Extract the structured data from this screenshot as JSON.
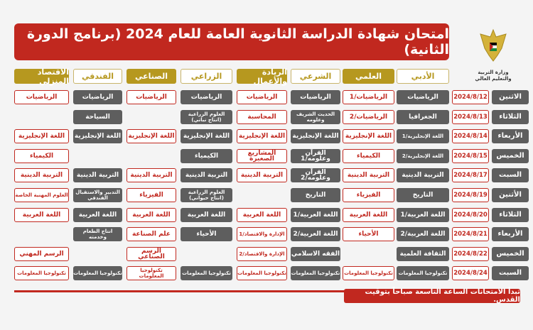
{
  "title": "امتحان شهادة الدراسة الثانوية العامة للعام  2024  (برنامج الدورة الثانية)",
  "ministry": "وزارة التربية والتعليم العالي",
  "colors": {
    "red": "#c1281f",
    "gold": "#b6981f",
    "gray": "#5e5e5e"
  },
  "streams": [
    {
      "label": "الأدبي",
      "style": "w"
    },
    {
      "label": "العلمي",
      "style": "g"
    },
    {
      "label": "الشرعي",
      "style": "w"
    },
    {
      "label": "الريادة والأعمال",
      "style": "g"
    },
    {
      "label": "الزراعي",
      "style": "w"
    },
    {
      "label": "الصناعي",
      "style": "g"
    },
    {
      "label": "الفندقي",
      "style": "w"
    },
    {
      "label": "الاقتصاد المنزلي",
      "style": "g"
    }
  ],
  "rows": [
    {
      "day": "الاثنين",
      "date": "2024/8/12",
      "cells": [
        [
          "الرياضيات",
          "d"
        ],
        [
          "الرياضيات/1",
          "r"
        ],
        [
          "الرياضيات",
          "d"
        ],
        [
          "الرياضيات",
          "r"
        ],
        [
          "الرياضيات",
          "d"
        ],
        [
          "الرياضيات",
          "r"
        ],
        [
          "الرياضيات",
          "d"
        ],
        [
          "الرياضيات",
          "r"
        ]
      ]
    },
    {
      "day": "الثلاثاء",
      "date": "2024/8/13",
      "cells": [
        [
          "الجغرافيا",
          "d"
        ],
        [
          "الرياضيات/2",
          "r"
        ],
        [
          "الحديث الشريف\nوعلومه",
          "d"
        ],
        [
          "المحاسبة",
          "r"
        ],
        [
          "العلوم الزراعية\n(انتاج نباتي)",
          "d"
        ],
        null,
        [
          "السياحة",
          "d"
        ],
        null
      ]
    },
    {
      "day": "الأربعاء",
      "date": "2024/8/14",
      "cells": [
        [
          "اللغة الإنجليزية/1",
          "d"
        ],
        [
          "اللغة الإنجليزية",
          "r"
        ],
        [
          "اللغة الإنجليزية",
          "d"
        ],
        [
          "اللغة الإنجليزية",
          "r"
        ],
        [
          "اللغة الإنجليزية",
          "d"
        ],
        [
          "اللغة الإنجليزية",
          "r"
        ],
        [
          "اللغة الإنجليزية",
          "d"
        ],
        [
          "اللغة الإنجليزية",
          "r"
        ]
      ]
    },
    {
      "day": "الخميس",
      "date": "2024/8/15",
      "cells": [
        [
          "اللغة الإنجليزية/2",
          "d"
        ],
        [
          "الكيمياء",
          "r"
        ],
        [
          "القرآن وعلومه/1",
          "d"
        ],
        [
          "المشاريع الصغيرة",
          "r"
        ],
        [
          "الكيمياء",
          "d"
        ],
        null,
        null,
        [
          "الكيمياء",
          "r"
        ]
      ]
    },
    {
      "day": "السبت",
      "date": "2024/8/17",
      "cells": [
        [
          "التربية الدينية",
          "d"
        ],
        [
          "التربية الدينية",
          "r"
        ],
        [
          "القرآن وعلومه/2",
          "d"
        ],
        [
          "التربية الدينية",
          "r"
        ],
        [
          "التربية الدينية",
          "d"
        ],
        [
          "التربية الدينية",
          "r"
        ],
        [
          "التربية الدينية",
          "d"
        ],
        [
          "التربية الدينية",
          "r"
        ]
      ]
    },
    {
      "day": "الأثنين",
      "date": "2024/8/19",
      "cells": [
        [
          "التاريخ",
          "d"
        ],
        [
          "الفيزياء",
          "r"
        ],
        [
          "التاريخ",
          "d"
        ],
        null,
        [
          "العلوم الزراعية\n(انتاج حيواني)",
          "d"
        ],
        [
          "الفيزياء",
          "r"
        ],
        [
          "التدبير والاستقبال\nالفندقي",
          "d"
        ],
        [
          "العلوم المهنية الخاصة",
          "r"
        ]
      ]
    },
    {
      "day": "الثلاثاء",
      "date": "2024/8/20",
      "cells": [
        [
          "اللغة العربية/1",
          "d"
        ],
        [
          "اللغة العربية",
          "r"
        ],
        [
          "اللغة العربية/1",
          "d"
        ],
        [
          "اللغة العربية",
          "r"
        ],
        [
          "اللغة العربية",
          "d"
        ],
        [
          "اللغة العربية",
          "r"
        ],
        [
          "اللغة العربية",
          "d"
        ],
        [
          "اللغة العربية",
          "r"
        ]
      ]
    },
    {
      "day": "الأربعاء",
      "date": "2024/8/21",
      "cells": [
        [
          "اللغة العربية/2",
          "d"
        ],
        [
          "الأحياء",
          "r"
        ],
        [
          "اللغة العربية/2",
          "d"
        ],
        [
          "الإدارة والاقتصاد/1",
          "r"
        ],
        [
          "الأحياء",
          "d"
        ],
        [
          "علم الصناعة",
          "r"
        ],
        [
          "انتاج الطعام\nوخدمته",
          "d"
        ],
        null
      ]
    },
    {
      "day": "الخميس",
      "date": "2024/8/22",
      "cells": [
        [
          "الثقافة العلمية",
          "d"
        ],
        null,
        [
          "الفقه الاسلامي",
          "d"
        ],
        [
          "الإدارة والاقتصاد/2",
          "r"
        ],
        null,
        [
          "الرسم الصناعي",
          "r"
        ],
        null,
        [
          "الرسم المهني",
          "r"
        ]
      ]
    },
    {
      "day": "السبت",
      "date": "2024/8/24",
      "cells": [
        [
          "تكنولوجيا المعلومات",
          "d"
        ],
        [
          "تكنولوجيا المعلومات",
          "r"
        ],
        [
          "تكنولوجيا المعلومات",
          "d"
        ],
        [
          "تكنولوجيا المعلومات",
          "r"
        ],
        [
          "تكنولوجيا المعلومات",
          "d"
        ],
        [
          "تكنولوجيا المعلومات",
          "r"
        ],
        [
          "تكنولوجيا المعلومات",
          "d"
        ],
        [
          "تكنولوجيا المعلومات",
          "r"
        ]
      ]
    }
  ],
  "note": "تبدأ الامتحانات الساعة التاسعة صباحاً بتوقيت القدس."
}
